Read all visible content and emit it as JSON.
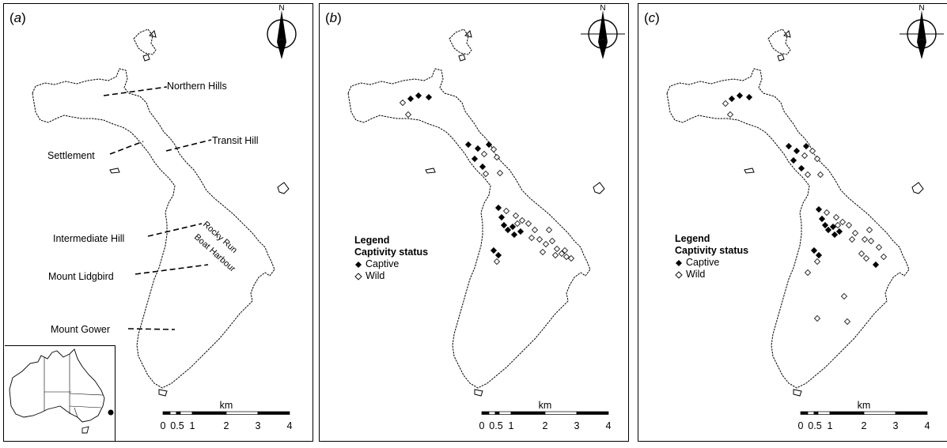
{
  "panels": [
    {
      "label": "a",
      "places": {
        "northern_hills": "Northern Hills",
        "transit_hill": "Transit Hill",
        "settlement": "Settlement",
        "intermediate_hill": "Intermediate Hill",
        "rocky_run": "Rocky Run",
        "boat_harbour": "Boat Harbour",
        "mount_lidgbird": "Mount Lidgbird",
        "mount_gower": "Mount Gower"
      }
    },
    {
      "label": "b",
      "legend": {
        "title": "Legend",
        "subtitle": "Captivity status",
        "captive": "Captive",
        "wild": "Wild"
      }
    },
    {
      "label": "c",
      "legend": {
        "title": "Legend",
        "subtitle": "Captivity status",
        "captive": "Captive",
        "wild": "Wild"
      }
    }
  ],
  "north_arrow": "N",
  "scale_bar": {
    "unit": "km",
    "ticks": [
      "0",
      "0.5",
      "1",
      "2",
      "3",
      "4"
    ]
  },
  "colors": {
    "ink": "#000000",
    "background": "#ffffff"
  }
}
